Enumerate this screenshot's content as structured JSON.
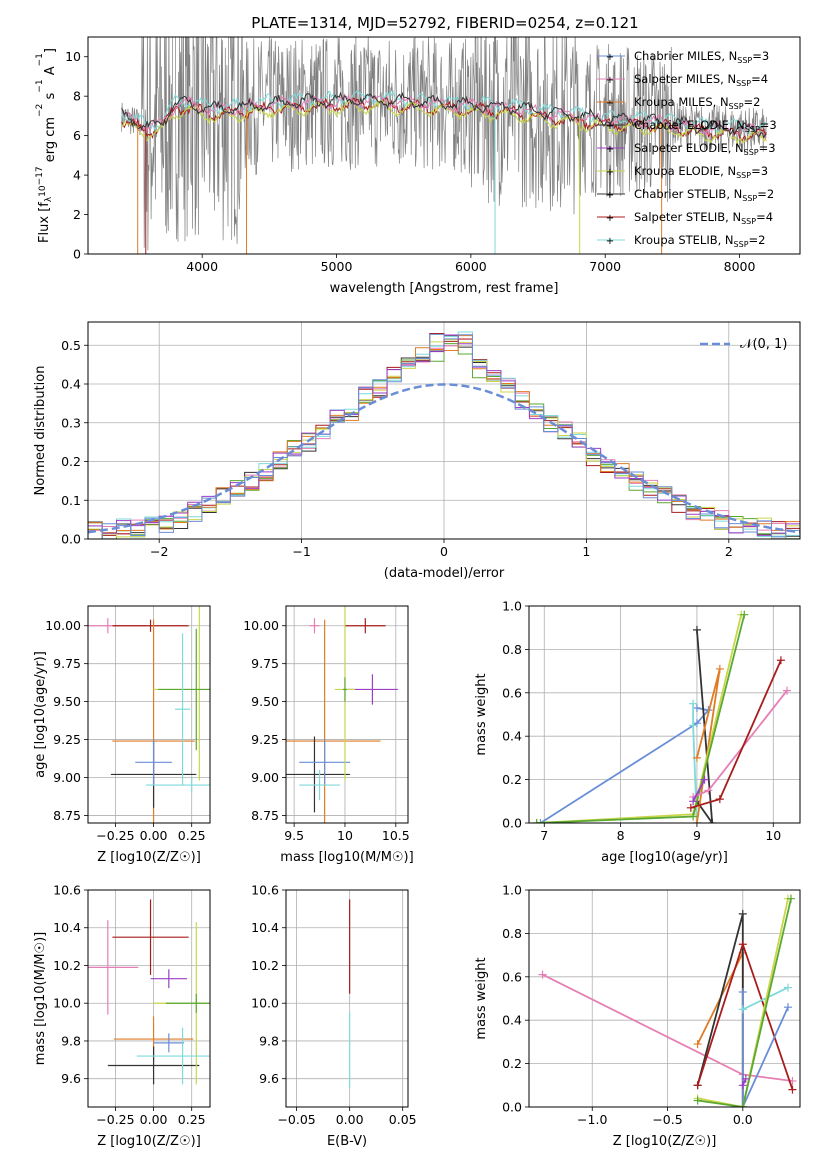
{
  "title": "PLATE=1314, MJD=52792, FIBERID=0254, z=0.121",
  "colors": {
    "blue": "#6a8ed6",
    "orange": "#e07b26",
    "purple": "#9b3fc6",
    "yellow": "#c9d64a",
    "black": "#333333",
    "red": "#a81c1c",
    "cyan": "#7fdada",
    "pink": "#e57fb5",
    "green": "#5aa832",
    "gray": "#808080"
  },
  "chart_data": [
    {
      "type": "line",
      "id": "spectrum",
      "xlabel": "wavelength [Angstrom, rest frame]",
      "ylabel": "Flux [f_λ10^-17 erg cm^-2 s^-1 A^-1]",
      "xlim": [
        3150,
        8450
      ],
      "ylim": [
        0,
        11
      ],
      "xticks": [
        4000,
        5000,
        6000,
        7000,
        8000
      ],
      "yticks": [
        0,
        2,
        4,
        6,
        8,
        10
      ],
      "legend": [
        {
          "label": "Chabrier MILES, N_SSP=3",
          "color": "blue"
        },
        {
          "label": "Salpeter MILES, N_SSP=4",
          "color": "pink"
        },
        {
          "label": "Kroupa MILES, N_SSP=2",
          "color": "orange"
        },
        {
          "label": "Chabrier ELODIE, N_SSP=3",
          "color": "black"
        },
        {
          "label": "Salpeter ELODIE, N_SSP=3",
          "color": "purple"
        },
        {
          "label": "Kroupa ELODIE, N_SSP=3",
          "color": "yellow"
        },
        {
          "label": "Chabrier STELIB, N_SSP=2",
          "color": "black"
        },
        {
          "label": "Salpeter STELIB, N_SSP=4",
          "color": "red"
        },
        {
          "label": "Kroupa STELIB, N_SSP=2",
          "color": "cyan"
        }
      ],
      "continuum": [
        [
          3400,
          7.0
        ],
        [
          3600,
          6.4
        ],
        [
          3700,
          6.6
        ],
        [
          3800,
          7.6
        ],
        [
          3900,
          7.6
        ],
        [
          4000,
          7.4
        ],
        [
          4100,
          7.3
        ],
        [
          4300,
          7.4
        ],
        [
          4500,
          7.6
        ],
        [
          4800,
          7.7
        ],
        [
          5000,
          7.7
        ],
        [
          5200,
          7.8
        ],
        [
          5500,
          7.7
        ],
        [
          5800,
          7.6
        ],
        [
          6000,
          7.5
        ],
        [
          6300,
          7.4
        ],
        [
          6600,
          7.1
        ],
        [
          7000,
          6.8
        ],
        [
          7400,
          6.7
        ],
        [
          7700,
          6.4
        ],
        [
          8000,
          6.3
        ],
        [
          8200,
          6.2
        ]
      ],
      "legend_position": "upper right"
    },
    {
      "type": "line",
      "id": "residuals",
      "xlabel": "(data-model)/error",
      "ylabel": "Normed distribution",
      "xlim": [
        -2.5,
        2.5
      ],
      "ylim": [
        0,
        0.56
      ],
      "xticks": [
        -2,
        -1,
        0,
        1,
        2
      ],
      "yticks": [
        0.0,
        0.1,
        0.2,
        0.3,
        0.4,
        0.5
      ],
      "bin_edges": [
        -2.5,
        -2.4,
        -2.3,
        -2.2,
        -2.1,
        -2.0,
        -1.9,
        -1.8,
        -1.7,
        -1.6,
        -1.5,
        -1.4,
        -1.3,
        -1.2,
        -1.1,
        -1.0,
        -0.9,
        -0.8,
        -0.7,
        -0.6,
        -0.5,
        -0.4,
        -0.3,
        -0.2,
        -0.1,
        0.0,
        0.1,
        0.2,
        0.3,
        0.4,
        0.5,
        0.6,
        0.7,
        0.8,
        0.9,
        1.0,
        1.1,
        1.2,
        1.3,
        1.4,
        1.5,
        1.6,
        1.7,
        1.8,
        1.9,
        2.0,
        2.1,
        2.2,
        2.3,
        2.4,
        2.5
      ],
      "hist_base": [
        0.02,
        0.02,
        0.03,
        0.03,
        0.04,
        0.04,
        0.05,
        0.07,
        0.09,
        0.11,
        0.13,
        0.15,
        0.17,
        0.2,
        0.23,
        0.25,
        0.28,
        0.31,
        0.33,
        0.37,
        0.39,
        0.42,
        0.46,
        0.47,
        0.48,
        0.5,
        0.5,
        0.44,
        0.42,
        0.39,
        0.36,
        0.33,
        0.3,
        0.28,
        0.25,
        0.21,
        0.19,
        0.17,
        0.15,
        0.13,
        0.11,
        0.09,
        0.07,
        0.06,
        0.05,
        0.04,
        0.03,
        0.03,
        0.02,
        0.02
      ],
      "legend": [
        {
          "label": "𝒩(0, 1)",
          "color": "blue"
        }
      ],
      "legend_position": "upper right"
    },
    {
      "type": "scatter",
      "id": "z-age",
      "xlabel": "Z [log10(Z/Z☉)]",
      "ylabel": "age [log10(age/yr)]",
      "xlim": [
        -0.43,
        0.37
      ],
      "ylim": [
        8.7,
        10.13
      ],
      "xticks": [
        -0.25,
        0.0,
        0.25
      ],
      "yticks": [
        8.75,
        9.0,
        9.25,
        9.5,
        9.75,
        10.0
      ],
      "xticklabels": [
        "−0.25",
        "0.00",
        "0.25"
      ],
      "points": [
        {
          "x": -0.3,
          "y": 10.0,
          "xerr": 0.25,
          "yerr": 0.05,
          "color": "pink"
        },
        {
          "x": -0.02,
          "y": 10.0,
          "xerr": 0.25,
          "yerr": 0.04,
          "color": "red"
        },
        {
          "x": 0.0,
          "y": 9.24,
          "xerr": 0.27,
          "yerr": 0.8,
          "color": "orange"
        },
        {
          "x": 0.0,
          "y": 9.02,
          "xerr": 0.28,
          "yerr": 0.22,
          "color": "black"
        },
        {
          "x": 0.0,
          "y": 9.1,
          "xerr": 0.12,
          "yerr": 0.15,
          "color": "blue"
        },
        {
          "x": 0.3,
          "y": 9.58,
          "xerr": 0.3,
          "yerr": 0.6,
          "color": "yellow"
        },
        {
          "x": 0.28,
          "y": 9.58,
          "xerr": 0.25,
          "yerr": 0.4,
          "color": "green"
        },
        {
          "x": 0.19,
          "y": 9.45,
          "xerr": 0.05,
          "yerr": 0.5,
          "color": "cyan"
        },
        {
          "x": 0.25,
          "y": 8.95,
          "xerr": 0.3,
          "yerr": 0.05,
          "color": "cyan"
        }
      ]
    },
    {
      "type": "scatter",
      "id": "mass-age",
      "xlabel": "mass [log10(M/M☉)]",
      "ylabel": "",
      "xlim": [
        9.42,
        10.62
      ],
      "ylim": [
        8.7,
        10.13
      ],
      "xticks": [
        9.5,
        10.0,
        10.5
      ],
      "yticks": [
        8.75,
        9.0,
        9.25,
        9.5,
        9.75,
        10.0
      ],
      "points": [
        {
          "x": 10.2,
          "y": 10.0,
          "xerr": 0.2,
          "yerr": 0.05,
          "color": "red"
        },
        {
          "x": 9.7,
          "y": 10.0,
          "xerr": 0.05,
          "yerr": 0.05,
          "color": "pink"
        },
        {
          "x": 9.8,
          "y": 9.24,
          "xerr": 0.55,
          "yerr": 0.8,
          "color": "orange"
        },
        {
          "x": 9.7,
          "y": 9.02,
          "xerr": 0.35,
          "yerr": 0.25,
          "color": "black"
        },
        {
          "x": 9.8,
          "y": 9.1,
          "xerr": 0.25,
          "yerr": 0.15,
          "color": "blue"
        },
        {
          "x": 10.27,
          "y": 9.58,
          "xerr": 0.25,
          "yerr": 0.1,
          "color": "purple"
        },
        {
          "x": 10.0,
          "y": 9.58,
          "xerr": 0.1,
          "yerr": 0.6,
          "color": "yellow"
        },
        {
          "x": 10.0,
          "y": 9.58,
          "xerr": 0.02,
          "yerr": 0.08,
          "color": "green"
        },
        {
          "x": 9.75,
          "y": 8.95,
          "xerr": 0.2,
          "yerr": 0.1,
          "color": "cyan"
        }
      ]
    },
    {
      "type": "line",
      "id": "age-weight",
      "xlabel": "age [log10(age/yr)]",
      "ylabel": "mass weight",
      "xlim": [
        6.8,
        10.35
      ],
      "ylim": [
        0,
        1.0
      ],
      "xticks": [
        7,
        8,
        9,
        10
      ],
      "yticks": [
        0.0,
        0.2,
        0.4,
        0.6,
        0.8,
        1.0
      ],
      "series": [
        {
          "color": "blue",
          "points": [
            [
              6.95,
              0.0
            ],
            [
              9.0,
              0.46
            ],
            [
              9.15,
              0.52
            ],
            [
              9.0,
              0.53
            ]
          ]
        },
        {
          "color": "cyan",
          "points": [
            [
              9.0,
              0.0
            ],
            [
              8.95,
              0.45
            ],
            [
              8.95,
              0.55
            ]
          ]
        },
        {
          "color": "black",
          "points": [
            [
              9.0,
              0.1
            ],
            [
              9.2,
              0.0
            ],
            [
              9.0,
              0.89
            ]
          ]
        },
        {
          "color": "orange",
          "points": [
            [
              9.0,
              0.3
            ],
            [
              9.3,
              0.71
            ],
            [
              9.0,
              0.0
            ]
          ]
        },
        {
          "color": "yellow",
          "points": [
            [
              6.9,
              0.0
            ],
            [
              8.95,
              0.04
            ],
            [
              9.58,
              0.96
            ]
          ]
        },
        {
          "color": "green",
          "points": [
            [
              6.9,
              0.0
            ],
            [
              8.95,
              0.03
            ],
            [
              9.62,
              0.96
            ]
          ]
        },
        {
          "color": "pink",
          "points": [
            [
              8.95,
              0.12
            ],
            [
              9.15,
              0.15
            ],
            [
              10.18,
              0.61
            ]
          ]
        },
        {
          "color": "purple",
          "points": [
            [
              8.95,
              0.1
            ],
            [
              9.1,
              0.2
            ]
          ]
        },
        {
          "color": "red",
          "points": [
            [
              8.92,
              0.07
            ],
            [
              9.3,
              0.11
            ],
            [
              10.1,
              0.75
            ]
          ]
        }
      ]
    },
    {
      "type": "scatter",
      "id": "z-mass",
      "xlabel": "Z [log10(Z/Z☉)]",
      "ylabel": "mass [log10(M/M☉)]",
      "xlim": [
        -0.43,
        0.37
      ],
      "ylim": [
        9.45,
        10.6
      ],
      "xticks": [
        -0.25,
        0.0,
        0.25
      ],
      "yticks": [
        9.6,
        9.8,
        10.0,
        10.2,
        10.4,
        10.6
      ],
      "xticklabels": [
        "−0.25",
        "0.00",
        "0.25"
      ],
      "points": [
        {
          "x": -0.3,
          "y": 10.19,
          "xerr": 0.2,
          "yerr": 0.25,
          "color": "pink"
        },
        {
          "x": -0.02,
          "y": 10.35,
          "xerr": 0.25,
          "yerr": 0.2,
          "color": "red"
        },
        {
          "x": 0.0,
          "y": 9.81,
          "xerr": 0.26,
          "yerr": 0.12,
          "color": "orange"
        },
        {
          "x": 0.0,
          "y": 9.67,
          "xerr": 0.3,
          "yerr": 0.1,
          "color": "black"
        },
        {
          "x": 0.1,
          "y": 9.79,
          "xerr": 0.1,
          "yerr": 0.05,
          "color": "blue"
        },
        {
          "x": 0.1,
          "y": 10.13,
          "xerr": 0.12,
          "yerr": 0.05,
          "color": "purple"
        },
        {
          "x": 0.28,
          "y": 10.0,
          "xerr": 0.28,
          "yerr": 0.43,
          "color": "yellow"
        },
        {
          "x": 0.28,
          "y": 10.0,
          "xerr": 0.2,
          "yerr": 0.05,
          "color": "green"
        },
        {
          "x": 0.19,
          "y": 9.72,
          "xerr": 0.3,
          "yerr": 0.15,
          "color": "cyan"
        }
      ]
    },
    {
      "type": "scatter",
      "id": "ebv-mass",
      "xlabel": "E(B-V)",
      "ylabel": "",
      "xlim": [
        -0.06,
        0.055
      ],
      "ylim": [
        9.45,
        10.6
      ],
      "xticks": [
        -0.05,
        0.0,
        0.05
      ],
      "yticks": [
        9.6,
        9.8,
        10.0,
        10.2,
        10.4,
        10.6
      ],
      "xticklabels": [
        "−0.05",
        "0.00",
        "0.05"
      ],
      "points": [
        {
          "x": 0.0,
          "y": 10.3,
          "xerr": 0,
          "yerr": 0.25,
          "color": "red"
        },
        {
          "x": 0.0,
          "y": 9.75,
          "xerr": 0,
          "yerr": 0.2,
          "color": "cyan"
        }
      ]
    },
    {
      "type": "line",
      "id": "z-weight",
      "xlabel": "Z [log10(Z/Z☉)]",
      "ylabel": "mass weight",
      "xlim": [
        -1.42,
        0.38
      ],
      "ylim": [
        0,
        1.0
      ],
      "xticks": [
        -1.0,
        -0.5,
        0.0
      ],
      "yticks": [
        0.0,
        0.2,
        0.4,
        0.6,
        0.8,
        1.0
      ],
      "xticklabels": [
        "−1.0",
        "−0.5",
        "0.0"
      ],
      "series": [
        {
          "color": "pink",
          "points": [
            [
              -1.33,
              0.61
            ],
            [
              0.0,
              0.15
            ],
            [
              0.33,
              0.12
            ]
          ]
        },
        {
          "color": "orange",
          "points": [
            [
              -0.3,
              0.29
            ],
            [
              0.0,
              0.71
            ],
            [
              0.0,
              0.0
            ]
          ]
        },
        {
          "color": "black",
          "points": [
            [
              -0.3,
              0.1
            ],
            [
              0.0,
              0.89
            ],
            [
              0.0,
              0.0
            ]
          ]
        },
        {
          "color": "red",
          "points": [
            [
              -0.3,
              0.1
            ],
            [
              0.0,
              0.75
            ],
            [
              0.33,
              0.08
            ]
          ]
        },
        {
          "color": "blue",
          "points": [
            [
              0.0,
              0.53
            ],
            [
              0.0,
              0.0
            ],
            [
              0.3,
              0.46
            ]
          ]
        },
        {
          "color": "cyan",
          "points": [
            [
              0.0,
              0.45
            ],
            [
              0.3,
              0.55
            ]
          ]
        },
        {
          "color": "yellow",
          "points": [
            [
              -0.3,
              0.04
            ],
            [
              0.0,
              0.0
            ],
            [
              0.3,
              0.96
            ]
          ]
        },
        {
          "color": "green",
          "points": [
            [
              -0.3,
              0.03
            ],
            [
              0.0,
              0.0
            ],
            [
              0.32,
              0.96
            ]
          ]
        },
        {
          "color": "purple",
          "points": [
            [
              0.0,
              0.1
            ],
            [
              0.02,
              0.13
            ]
          ]
        }
      ]
    }
  ]
}
